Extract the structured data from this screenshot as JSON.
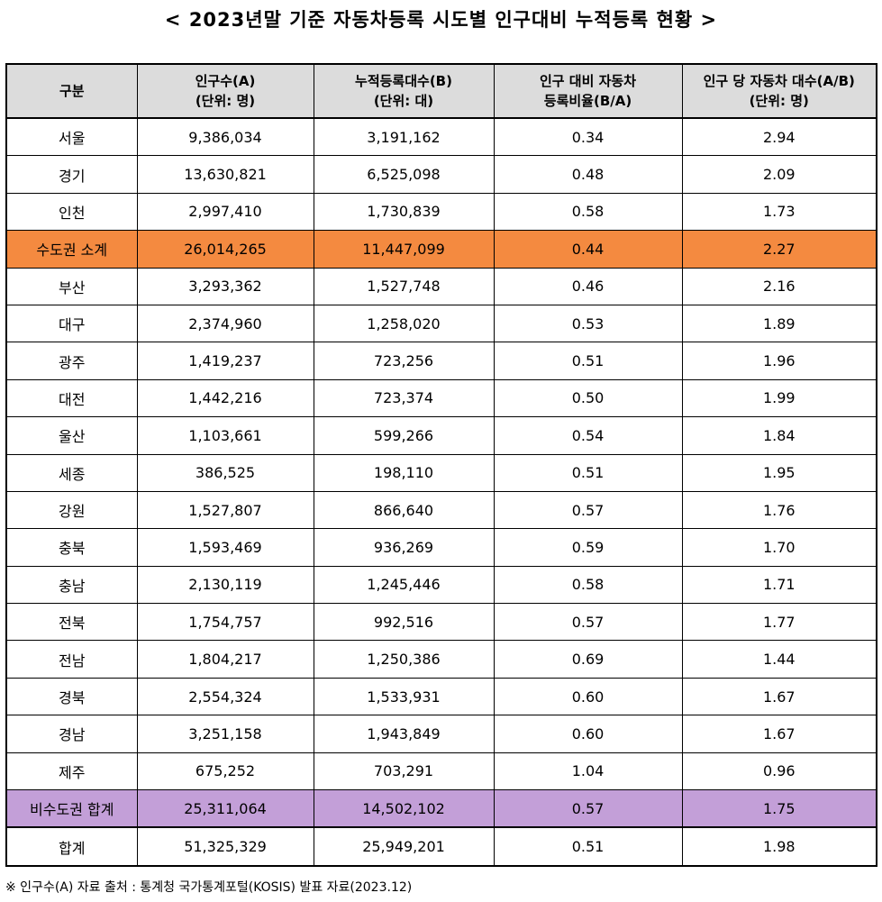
{
  "title": "< 2023년말 기준 자동차등록 시도별 인구대비 누적등록 현황 >",
  "headers": [
    {
      "line1": "구분",
      "line2": ""
    },
    {
      "line1": "인구수(A)",
      "line2": "(단위: 명)"
    },
    {
      "line1": "누적등록대수(B)",
      "line2": "(단위: 대)"
    },
    {
      "line1": "인구 대비 자동차",
      "line2": "등록비율(B/A)"
    },
    {
      "line1": "인구 당 자동차 대수(A/B)",
      "line2": "(단위: 명)"
    }
  ],
  "rows": [
    {
      "region": "서울",
      "population": "9,386,034",
      "registered": "3,191,162",
      "ratio": "0.34",
      "per_car": "2.94",
      "style": ""
    },
    {
      "region": "경기",
      "population": "13,630,821",
      "registered": "6,525,098",
      "ratio": "0.48",
      "per_car": "2.09",
      "style": ""
    },
    {
      "region": "인천",
      "population": "2,997,410",
      "registered": "1,730,839",
      "ratio": "0.58",
      "per_car": "1.73",
      "style": ""
    },
    {
      "region": "수도권 소계",
      "population": "26,014,265",
      "registered": "11,447,099",
      "ratio": "0.44",
      "per_car": "2.27",
      "style": "capital"
    },
    {
      "region": "부산",
      "population": "3,293,362",
      "registered": "1,527,748",
      "ratio": "0.46",
      "per_car": "2.16",
      "style": ""
    },
    {
      "region": "대구",
      "population": "2,374,960",
      "registered": "1,258,020",
      "ratio": "0.53",
      "per_car": "1.89",
      "style": ""
    },
    {
      "region": "광주",
      "population": "1,419,237",
      "registered": "723,256",
      "ratio": "0.51",
      "per_car": "1.96",
      "style": ""
    },
    {
      "region": "대전",
      "population": "1,442,216",
      "registered": "723,374",
      "ratio": "0.50",
      "per_car": "1.99",
      "style": ""
    },
    {
      "region": "울산",
      "population": "1,103,661",
      "registered": "599,266",
      "ratio": "0.54",
      "per_car": "1.84",
      "style": ""
    },
    {
      "region": "세종",
      "population": "386,525",
      "registered": "198,110",
      "ratio": "0.51",
      "per_car": "1.95",
      "style": ""
    },
    {
      "region": "강원",
      "population": "1,527,807",
      "registered": "866,640",
      "ratio": "0.57",
      "per_car": "1.76",
      "style": ""
    },
    {
      "region": "충북",
      "population": "1,593,469",
      "registered": "936,269",
      "ratio": "0.59",
      "per_car": "1.70",
      "style": ""
    },
    {
      "region": "충남",
      "population": "2,130,119",
      "registered": "1,245,446",
      "ratio": "0.58",
      "per_car": "1.71",
      "style": ""
    },
    {
      "region": "전북",
      "population": "1,754,757",
      "registered": "992,516",
      "ratio": "0.57",
      "per_car": "1.77",
      "style": ""
    },
    {
      "region": "전남",
      "population": "1,804,217",
      "registered": "1,250,386",
      "ratio": "0.69",
      "per_car": "1.44",
      "style": ""
    },
    {
      "region": "경북",
      "population": "2,554,324",
      "registered": "1,533,931",
      "ratio": "0.60",
      "per_car": "1.67",
      "style": ""
    },
    {
      "region": "경남",
      "population": "3,251,158",
      "registered": "1,943,849",
      "ratio": "0.60",
      "per_car": "1.67",
      "style": ""
    },
    {
      "region": "제주",
      "population": "675,252",
      "registered": "703,291",
      "ratio": "1.04",
      "per_car": "0.96",
      "style": ""
    },
    {
      "region": "비수도권 합계",
      "population": "25,311,064",
      "registered": "14,502,102",
      "ratio": "0.57",
      "per_car": "1.75",
      "style": "noncapital"
    },
    {
      "region": "합계",
      "population": "51,325,329",
      "registered": "25,949,201",
      "ratio": "0.51",
      "per_car": "1.98",
      "style": "total"
    }
  ],
  "colors": {
    "capital_row": "#f48a40",
    "noncapital_row": "#c39fd8",
    "header_bg": "#dcdcdc"
  },
  "footnote": "※ 인구수(A) 자료 출처 : 통계청 국가통계포털(KOSIS) 발표 자료(2023.12)"
}
